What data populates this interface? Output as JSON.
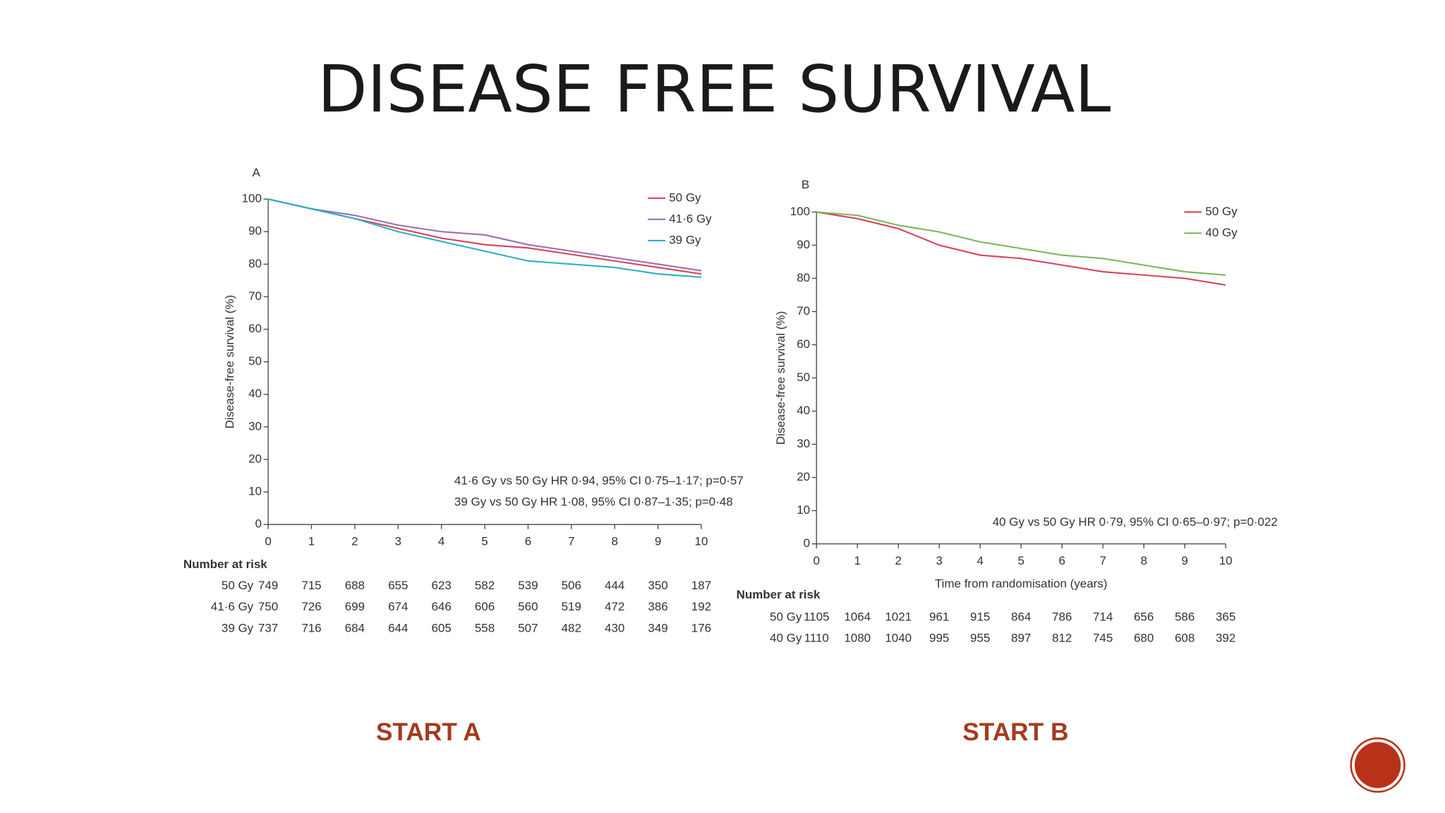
{
  "slide": {
    "title": "DISEASE FREE SURVIVAL",
    "captions": [
      "START A",
      "START B"
    ]
  },
  "chart_data": [
    {
      "type": "line",
      "panel": "A",
      "ylabel": "Disease-free survival (%)",
      "x": [
        0,
        1,
        2,
        3,
        4,
        5,
        6,
        7,
        8,
        9,
        10
      ],
      "xlim": [
        0,
        10
      ],
      "xticks": [
        0,
        1,
        2,
        3,
        4,
        5,
        6,
        7,
        8,
        9,
        10
      ],
      "ylim": [
        0,
        100
      ],
      "yticks": [
        0,
        10,
        20,
        30,
        40,
        50,
        60,
        70,
        80,
        90,
        100
      ],
      "legend": "upper right",
      "series": [
        {
          "name": "50 Gy",
          "color": "#d9425a",
          "values": [
            100,
            97,
            94,
            91,
            88,
            86,
            85,
            83,
            81,
            79,
            77
          ]
        },
        {
          "name": "41·6 Gy",
          "color": "#9b6fb0",
          "values": [
            100,
            97,
            95,
            92,
            90,
            89,
            86,
            84,
            82,
            80,
            78
          ]
        },
        {
          "name": "39 Gy",
          "color": "#2bb0c8",
          "values": [
            100,
            97,
            94,
            90,
            87,
            84,
            81,
            80,
            79,
            77,
            76
          ]
        }
      ],
      "annotations": [
        "41·6 Gy vs 50 Gy HR 0·94, 95% CI 0·75–1·17; p=0·57",
        "39 Gy vs 50 Gy HR 1·08, 95% CI 0·87–1·35; p=0·48"
      ],
      "risk_table": {
        "title": "Number at risk",
        "rows": [
          {
            "label": "50 Gy",
            "values": [
              749,
              715,
              688,
              655,
              623,
              582,
              539,
              506,
              444,
              350,
              187
            ]
          },
          {
            "label": "41·6 Gy",
            "values": [
              750,
              726,
              699,
              674,
              646,
              606,
              560,
              519,
              472,
              386,
              192
            ]
          },
          {
            "label": "39 Gy",
            "values": [
              737,
              716,
              684,
              644,
              605,
              558,
              507,
              482,
              430,
              349,
              176
            ]
          }
        ]
      }
    },
    {
      "type": "line",
      "panel": "B",
      "ylabel": "Disease-free survival (%)",
      "xlabel": "Time from randomisation (years)",
      "x": [
        0,
        1,
        2,
        3,
        4,
        5,
        6,
        7,
        8,
        9,
        10
      ],
      "xlim": [
        0,
        10
      ],
      "xticks": [
        0,
        1,
        2,
        3,
        4,
        5,
        6,
        7,
        8,
        9,
        10
      ],
      "ylim": [
        0,
        100
      ],
      "yticks": [
        0,
        10,
        20,
        30,
        40,
        50,
        60,
        70,
        80,
        90,
        100
      ],
      "legend": "upper right",
      "series": [
        {
          "name": "50 Gy",
          "color": "#d9425a",
          "values": [
            100,
            98,
            95,
            90,
            87,
            86,
            84,
            82,
            81,
            80,
            78
          ]
        },
        {
          "name": "40 Gy",
          "color": "#7ab55c",
          "values": [
            100,
            99,
            96,
            94,
            91,
            89,
            87,
            86,
            84,
            82,
            81
          ]
        }
      ],
      "annotations": [
        "40 Gy vs 50 Gy HR 0·79, 95% CI 0·65–0·97; p=0·022"
      ],
      "risk_table": {
        "title": "Number at risk",
        "rows": [
          {
            "label": "50 Gy",
            "values": [
              1105,
              1064,
              1021,
              961,
              915,
              864,
              786,
              714,
              656,
              586,
              365
            ]
          },
          {
            "label": "40 Gy",
            "values": [
              1110,
              1080,
              1040,
              995,
              955,
              897,
              812,
              745,
              680,
              608,
              392
            ]
          }
        ]
      }
    }
  ]
}
